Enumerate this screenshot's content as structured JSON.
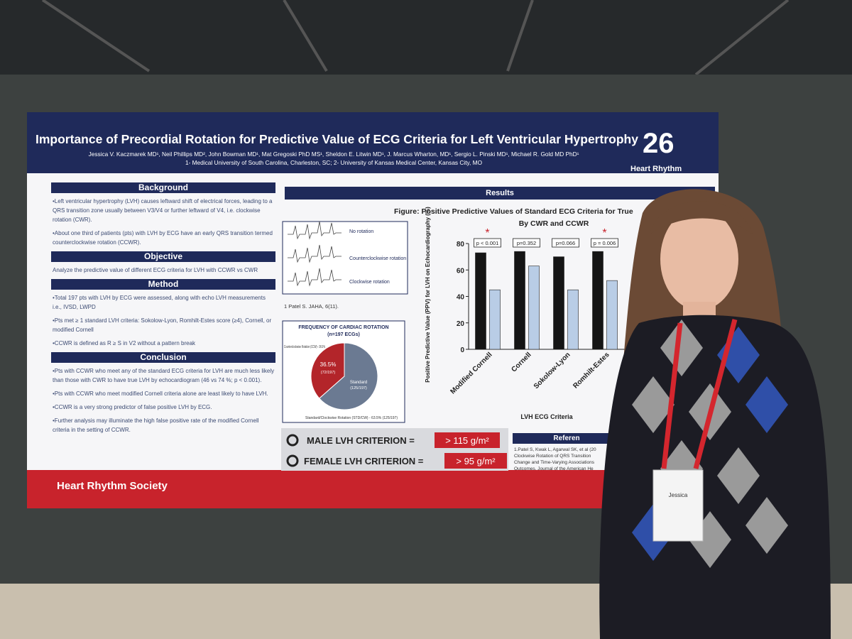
{
  "poster": {
    "title": "Importance of Precordial Rotation for Predictive Value of ECG Criteria for Left Ventricular Hypertrophy",
    "authors": "Jessica V. Kaczmarek MD¹, Neil Phillips MD², John Bowman MD¹, Mat Gregoski PhD MS¹, Sheldon E. Litwin MD¹, J. Marcus Wharton, MD¹, Sergio L. Pinski MD¹, Michael R. Gold MD PhD¹",
    "affiliations": "1- Medical University of South Carolina, Charleston, SC;  2- University of Kansas Medical Center, Kansas City, MO",
    "logo_number": "26",
    "logo_text": "Heart Rhythm",
    "sections": [
      {
        "heading": "Background",
        "paragraphs": [
          "•Left ventricular hypertrophy (LVH) causes leftward shift of electrical forces, leading to a QRS transition zone usually between V3/V4 or further leftward of V4, i.e. clockwise rotation (CWR).",
          "•About one third of patients (pts) with LVH by ECG have an early QRS transition termed counterclockwise rotation (CCWR)."
        ]
      },
      {
        "heading": "Objective",
        "paragraphs": [
          "Analyze the predictive value of different ECG criteria for LVH with CCWR vs CWR"
        ]
      },
      {
        "heading": "Method",
        "paragraphs": [
          "•Total 197 pts with LVH by ECG were assessed, along with echo LVH measurements i.e., IVSD, LWPD",
          "•Pts met ≥ 1 standard LVH criteria: Sokolow-Lyon, Romhilt-Estes score (≥4), Cornell, or modified Cornell",
          "•CCWR is defined as R ≥ S in V2 without a pattern break"
        ]
      },
      {
        "heading": "Conclusion",
        "paragraphs": [
          "•Pts with CCWR who meet any of the standard ECG criteria for LVH are much less likely than those with CWR to have true LVH by echocardiogram (46 vs 74 %; p < 0.001).",
          "•Pts with CCWR who meet modified Cornell criteria alone are least likely to have LVH.",
          "•CCWR is a very strong predictor of false positive LVH by ECG.",
          "•Further analysis may illuminate the high false positive rate of the modified Cornell criteria in the setting of CCWR."
        ]
      }
    ],
    "results_heading": "Results",
    "ecg_figure": {
      "labels": [
        "No rotation",
        "Counterclockwise rotation",
        "Clockwise rotation"
      ],
      "citation": "1 Patel S. JAHA, 6(11)."
    },
    "pie": {
      "title": "FREQUENCY OF CARDIAC ROTATION",
      "subtitle": "(n=197 ECGs)",
      "slices": [
        {
          "label": "Counterclockwise Rotation (CCW) - 36.5%",
          "value": 36.5,
          "value_label": "36.5%",
          "count": "(72/197)",
          "color": "#b3252a"
        },
        {
          "label": "Standard/Clockwise Rotation (STD/CW) - 63.5% (125/197)",
          "value": 63.5,
          "inner": "Standard",
          "count": "(125/197)",
          "color": "#6b7a92"
        }
      ]
    },
    "bar_chart": {
      "title": "Figure: Positive Predictive Values of Standard ECG Criteria for True",
      "subtitle": "By CWR and CCWR",
      "y_label": "Positive Predictive Value (PPV) for LVH on Echocardiography (%)",
      "x_label": "LVH ECG Criteria",
      "categories": [
        "Modified Cornell",
        "Cornell",
        "Sokolow-Lyon",
        "Romhilt-Estes"
      ],
      "series": [
        {
          "color": "#151515",
          "values": [
            73,
            74,
            70,
            74
          ]
        },
        {
          "color": "#b9cde6",
          "values": [
            45,
            63,
            45,
            52
          ]
        }
      ],
      "p_values": [
        "p < 0.001",
        "p=0.352",
        "p=0.066",
        "p = 0.006"
      ],
      "significance": [
        "*",
        null,
        null,
        "*"
      ],
      "ylim": [
        0,
        80
      ],
      "yticks": [
        0,
        20,
        40,
        60,
        80
      ]
    },
    "criteria": [
      {
        "label": "MALE LVH CRITERION =",
        "threshold": "> 115 g/m²"
      },
      {
        "label": "FEMALE LVH CRITERION =",
        "threshold": "> 95 g/m²"
      }
    ],
    "references_heading": "Referen",
    "references": [
      "1.Patel S, Kwak L, Agarwal SK, et al (20",
      "Clockwise Rotation of QRS Transition",
      "Change and Time-Varying Associations",
      "Outcomes. Journal of the American He"
    ],
    "footer": "Heart Rhythm Society",
    "badge_name": "Jessica"
  }
}
